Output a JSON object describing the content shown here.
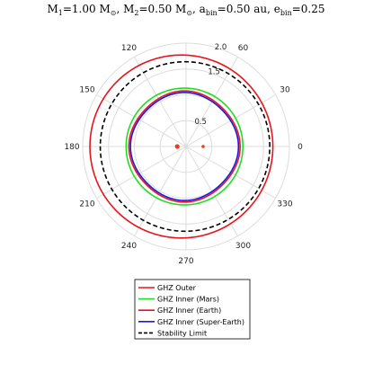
{
  "chart_data": {
    "type": "polar-line",
    "title": "M₁=1.00 M☉, M₂=0.50 M☉, a_bin=0.50 au, e_bin=0.25",
    "title_parts": {
      "m1_label": "M",
      "m1_sub": "1",
      "m1_value": "=1.00 M",
      "m1_unit_sub": "⊙",
      "m2_label": ", M",
      "m2_sub": "2",
      "m2_value": "=0.50 M",
      "m2_unit_sub": "⊙",
      "a_label": ", a",
      "a_sub": "bin",
      "a_value": "=0.50 au",
      "e_label": ", e",
      "e_sub": "bin",
      "e_value": "=0.25"
    },
    "angular_ticks_deg": [
      0,
      30,
      60,
      90,
      120,
      150,
      180,
      210,
      240,
      270,
      300,
      330
    ],
    "angular_tick_labels": [
      "0",
      "30",
      "60",
      "",
      "120",
      "150",
      "180",
      "210",
      "240",
      "270",
      "300",
      "330"
    ],
    "radial_ticks": [
      0.5,
      1.0,
      1.5,
      2.0
    ],
    "radial_tick_labels": [
      "0.5",
      "",
      "1.5",
      "2.0"
    ],
    "rlim": [
      0,
      2.0
    ],
    "grid": true,
    "legend_position": "bottom",
    "series": [
      {
        "name": "GHZ Outer",
        "color": "#e8141c",
        "dash": "solid",
        "base_radius": 1.77,
        "dx": -0.09,
        "dy": 0.0,
        "wobble": 0.0
      },
      {
        "name": "GHZ Inner (Mars)",
        "color": "#22dd22",
        "dash": "solid",
        "base_radius": 1.13,
        "dx": -0.03,
        "dy": 0.0,
        "wobble": 0.0
      },
      {
        "name": "GHZ Inner (Earth)",
        "color": "#e8141c",
        "dash": "solid",
        "base_radius": 1.06,
        "dx": -0.03,
        "dy": 0.0,
        "wobble": 0.015
      },
      {
        "name": "GHZ Inner (Super-Earth)",
        "color": "#1a1ae6",
        "dash": "solid",
        "base_radius": 1.03,
        "dx": -0.03,
        "dy": 0.0,
        "wobble": 0.015
      },
      {
        "name": "Stability Limit",
        "color": "#000000",
        "dash": "dashed",
        "base_radius": 1.64,
        "dx": -0.02,
        "dy": 0.0,
        "wobble": 0.0
      }
    ],
    "stars": [
      {
        "name": "M1",
        "x": -0.17,
        "y": 0.0,
        "color": "#e8401c"
      },
      {
        "name": "M2",
        "x": 0.33,
        "y": 0.0,
        "color": "#e8401c"
      }
    ]
  }
}
